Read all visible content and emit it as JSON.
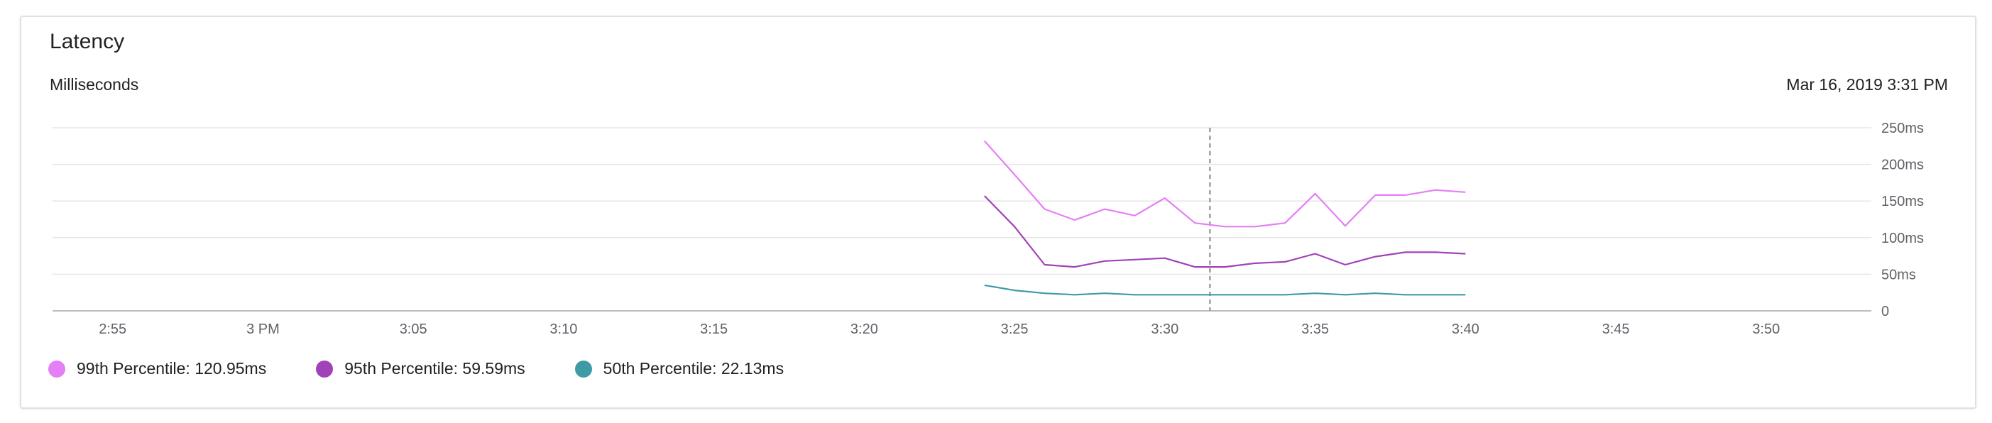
{
  "card": {
    "title": "Latency",
    "subtitle": "Milliseconds",
    "timestamp": "Mar 16, 2019 3:31 PM"
  },
  "chart_data": {
    "type": "line",
    "title": "Latency",
    "ylabel": "Milliseconds",
    "ylim": [
      0,
      250
    ],
    "y_ticks": [
      "0",
      "50ms",
      "100ms",
      "150ms",
      "200ms",
      "250ms"
    ],
    "y_tick_values": [
      0,
      50,
      100,
      150,
      200,
      250
    ],
    "x_ticks": [
      "2:55",
      "3 PM",
      "3:05",
      "3:10",
      "3:15",
      "3:20",
      "3:25",
      "3:30",
      "3:35",
      "3:40",
      "3:45",
      "3:50"
    ],
    "x_tick_minutes": [
      175,
      180,
      185,
      190,
      195,
      200,
      205,
      210,
      215,
      220,
      225,
      230
    ],
    "xlim_minutes": [
      173,
      233.5
    ],
    "cursor_minute": 211.5,
    "x": [
      204,
      205,
      206,
      207,
      208,
      209,
      210,
      211,
      212,
      213,
      214,
      215,
      216,
      217,
      218,
      219,
      220
    ],
    "series": [
      {
        "name": "99th Percentile",
        "color": "#e47ff5",
        "values": [
          232,
          186,
          139,
          124,
          139,
          130,
          154,
          120,
          115,
          115,
          120,
          160,
          116,
          158,
          158,
          165,
          162
        ]
      },
      {
        "name": "95th Percentile",
        "color": "#a142b8",
        "values": [
          157,
          115,
          63,
          60,
          68,
          70,
          72,
          60,
          60,
          65,
          67,
          78,
          63,
          74,
          80,
          80,
          78
        ]
      },
      {
        "name": "50th Percentile",
        "color": "#3e9ba5",
        "values": [
          35,
          28,
          24,
          22,
          24,
          22,
          22,
          22,
          22,
          22,
          22,
          24,
          22,
          24,
          22,
          22,
          22
        ]
      }
    ],
    "grid": true,
    "legend_position": "bottom-left"
  },
  "legend": [
    {
      "label": "99th Percentile: 120.95ms",
      "color": "#e47ff5"
    },
    {
      "label": "95th Percentile: 59.59ms",
      "color": "#a142b8"
    },
    {
      "label": "50th Percentile: 22.13ms",
      "color": "#3e9ba5"
    }
  ]
}
